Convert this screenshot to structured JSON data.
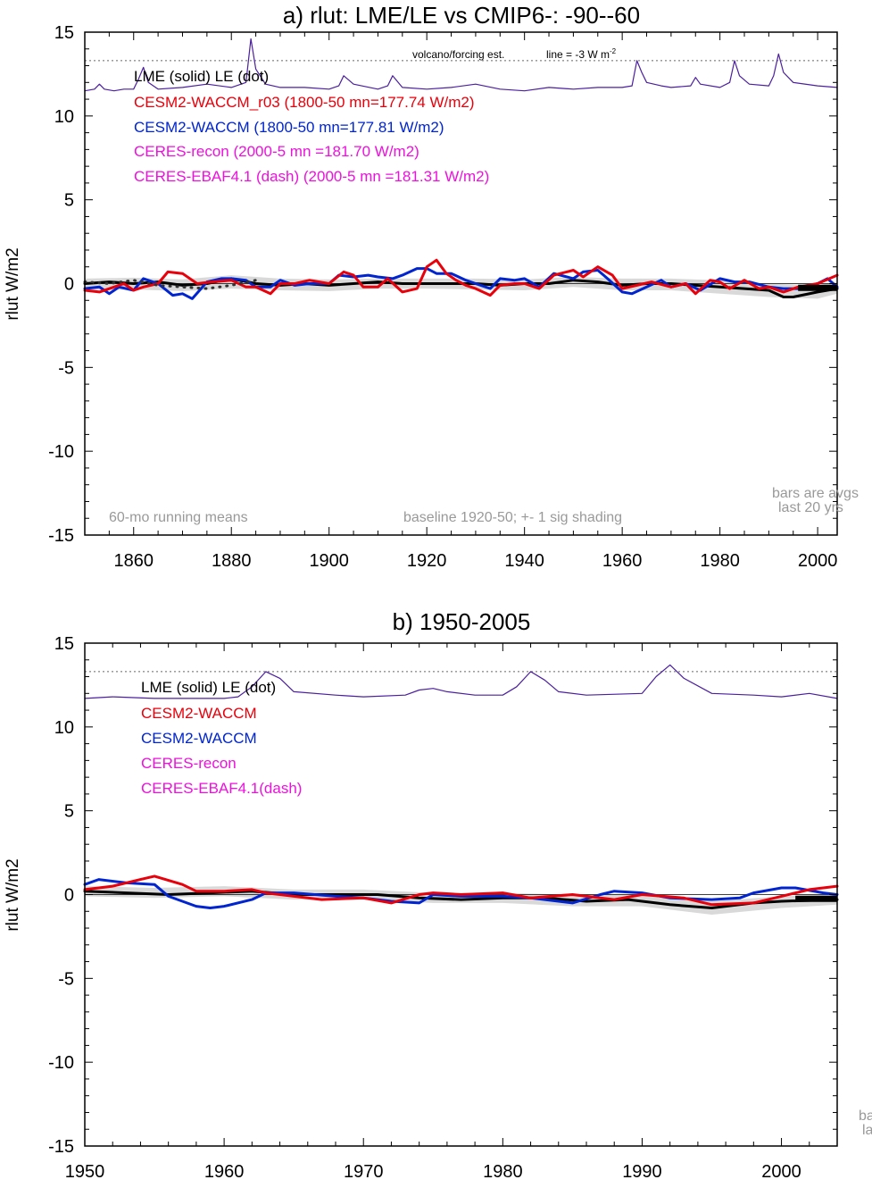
{
  "chart_data": [
    {
      "type": "line",
      "title": "a) rlut: LME/LE vs CMIP6-: -90--60",
      "ylabel": "rlut W/m2",
      "xlabel": "",
      "xlim": [
        1850,
        2004
      ],
      "ylim": [
        -15,
        15
      ],
      "xticks": [
        1860,
        1880,
        1900,
        1920,
        1940,
        1960,
        1980,
        2000
      ],
      "yticks": [
        15,
        10,
        5,
        0,
        -5,
        -10,
        -15
      ],
      "xtick_labels": [
        "1860",
        "1880",
        "1900",
        "1920",
        "1940",
        "1960",
        "1980",
        "2000"
      ],
      "ytick_labels": [
        "15",
        "10",
        "5",
        "0",
        "-5",
        "-10",
        "-15"
      ],
      "grid": false,
      "reference_line_y": 13.3,
      "volcano_note": "volcano/forcing est.",
      "line_note": "line = -3 W m",
      "line_note_sup": "-2",
      "legend": [
        {
          "text": "LME (solid)   LE (dot)",
          "color": "#000000"
        },
        {
          "text": "CESM2-WACCM_r03 (1800-50 mn=177.74 W/m2)",
          "color": "#e8000b"
        },
        {
          "text": "CESM2-WACCM (1800-50 mn=177.81 W/m2)",
          "color": "#0025d0"
        },
        {
          "text": "CERES-recon (2000-5 mn =181.70 W/m2)",
          "color": "#ee10dd"
        },
        {
          "text": "CERES-EBAF4.1 (dash) (2000-5 mn =181.31 W/m2)",
          "color": "#ee10dd"
        }
      ],
      "footnote_left": "60-mo running means",
      "footnote_mid": "baseline 1920-50; +- 1 sig shading",
      "footnote_right_1": "bars are avgs",
      "footnote_right_2": "last 20 yrs",
      "colors": {
        "lme": "#000000",
        "r03": "#e8000b",
        "waccm": "#0025d0",
        "forcing": "#4b1f9e",
        "shade": "#d9d9d9",
        "note": "#999999"
      },
      "series": [
        {
          "key": "forcing",
          "x": [
            1850,
            1852,
            1853,
            1854,
            1856,
            1858,
            1860,
            1861,
            1862,
            1863,
            1865,
            1870,
            1875,
            1880,
            1883,
            1884,
            1885,
            1887,
            1890,
            1895,
            1900,
            1902,
            1903,
            1905,
            1910,
            1912,
            1913,
            1915,
            1920,
            1925,
            1930,
            1935,
            1940,
            1945,
            1950,
            1955,
            1960,
            1962,
            1963,
            1964,
            1965,
            1968,
            1970,
            1974,
            1975,
            1976,
            1980,
            1982,
            1983,
            1984,
            1986,
            1990,
            1991,
            1992,
            1993,
            1995,
            2000,
            2004
          ],
          "values": [
            11.5,
            11.6,
            11.9,
            11.6,
            11.5,
            11.6,
            11.6,
            12.2,
            12.9,
            12.0,
            11.6,
            11.7,
            11.9,
            11.7,
            12.0,
            14.6,
            12.8,
            11.9,
            11.7,
            11.7,
            11.6,
            11.8,
            12.4,
            11.9,
            11.6,
            11.8,
            12.4,
            11.7,
            11.6,
            11.7,
            11.9,
            11.6,
            11.5,
            11.7,
            11.6,
            11.7,
            11.7,
            11.8,
            13.3,
            12.6,
            12.0,
            11.8,
            11.7,
            11.8,
            12.3,
            11.9,
            11.7,
            12.0,
            13.3,
            12.4,
            11.9,
            11.8,
            12.4,
            13.7,
            12.6,
            12.0,
            11.8,
            11.7
          ]
        },
        {
          "key": "lme",
          "x": [
            1850,
            1855,
            1860,
            1865,
            1870,
            1875,
            1880,
            1885,
            1890,
            1895,
            1900,
            1905,
            1910,
            1915,
            1920,
            1925,
            1930,
            1935,
            1940,
            1945,
            1950,
            1955,
            1960,
            1965,
            1970,
            1975,
            1980,
            1985,
            1990,
            1993,
            1995,
            2000,
            2004
          ],
          "values": [
            0.0,
            0.1,
            0.0,
            0.1,
            -0.1,
            0.0,
            0.3,
            0.0,
            -0.1,
            0.0,
            -0.1,
            0.0,
            0.1,
            0.0,
            0.0,
            0.0,
            0.0,
            -0.1,
            0.0,
            0.0,
            0.2,
            0.1,
            -0.1,
            0.0,
            0.0,
            -0.1,
            -0.2,
            -0.3,
            -0.4,
            -0.8,
            -0.8,
            -0.5,
            -0.3
          ]
        },
        {
          "key": "r03",
          "x": [
            1850,
            1853,
            1856,
            1858,
            1860,
            1862,
            1865,
            1867,
            1870,
            1873,
            1876,
            1880,
            1883,
            1885,
            1888,
            1890,
            1893,
            1896,
            1900,
            1903,
            1905,
            1907,
            1910,
            1912,
            1915,
            1918,
            1920,
            1922,
            1924,
            1926,
            1928,
            1930,
            1933,
            1935,
            1938,
            1940,
            1943,
            1946,
            1950,
            1952,
            1955,
            1958,
            1960,
            1963,
            1966,
            1970,
            1973,
            1975,
            1978,
            1980,
            1982,
            1985,
            1988,
            1990,
            1993,
            1996,
            2000,
            2004
          ],
          "values": [
            -0.4,
            -0.5,
            -0.2,
            0.0,
            -0.4,
            -0.2,
            0.0,
            0.7,
            0.6,
            0.0,
            0.1,
            0.2,
            -0.2,
            -0.2,
            -0.6,
            0.0,
            0.0,
            0.2,
            0.0,
            0.7,
            0.5,
            -0.2,
            -0.2,
            0.3,
            -0.5,
            -0.3,
            1.0,
            1.4,
            0.6,
            0.2,
            -0.1,
            -0.3,
            -0.7,
            -0.1,
            0.0,
            0.0,
            -0.3,
            0.5,
            0.8,
            0.4,
            1.0,
            0.5,
            -0.3,
            -0.1,
            0.1,
            -0.2,
            0.0,
            -0.6,
            0.2,
            0.1,
            -0.3,
            0.2,
            -0.3,
            -0.2,
            -0.5,
            -0.2,
            0.0,
            0.5
          ]
        },
        {
          "key": "waccm",
          "x": [
            1850,
            1853,
            1855,
            1857,
            1860,
            1862,
            1865,
            1868,
            1870,
            1872,
            1875,
            1878,
            1880,
            1883,
            1885,
            1888,
            1890,
            1893,
            1896,
            1900,
            1902,
            1905,
            1908,
            1910,
            1913,
            1915,
            1918,
            1920,
            1922,
            1925,
            1928,
            1930,
            1933,
            1935,
            1938,
            1940,
            1943,
            1946,
            1950,
            1952,
            1955,
            1957,
            1960,
            1962,
            1965,
            1968,
            1970,
            1973,
            1976,
            1980,
            1983,
            1986,
            1990,
            1993,
            1996,
            2000,
            2002,
            2004
          ],
          "values": [
            -0.3,
            -0.2,
            -0.6,
            -0.2,
            -0.4,
            0.3,
            0.0,
            -0.7,
            -0.6,
            -0.9,
            0.1,
            0.3,
            0.3,
            0.2,
            -0.2,
            -0.2,
            0.2,
            -0.1,
            0.0,
            0.0,
            0.5,
            0.4,
            0.5,
            0.4,
            0.3,
            0.5,
            0.9,
            0.9,
            0.6,
            0.6,
            0.2,
            0.0,
            -0.3,
            0.3,
            0.2,
            0.3,
            -0.2,
            0.6,
            0.3,
            0.7,
            0.8,
            0.3,
            -0.5,
            -0.6,
            -0.2,
            0.2,
            -0.2,
            0.0,
            -0.4,
            0.3,
            0.1,
            0.1,
            -0.2,
            -0.3,
            -0.3,
            0.0,
            0.3,
            -0.2
          ]
        },
        {
          "key": "le_dot",
          "x": [
            1850,
            1855,
            1860,
            1865,
            1870,
            1875,
            1880,
            1885
          ],
          "values": [
            0.1,
            0.0,
            0.2,
            -0.1,
            -0.2,
            -0.3,
            -0.1,
            0.2
          ]
        }
      ],
      "band": {
        "x": [
          1850,
          1860,
          1870,
          1880,
          1890,
          1900,
          1910,
          1920,
          1930,
          1940,
          1950,
          1960,
          1970,
          1980,
          1990,
          2000,
          2004
        ],
        "upper": [
          0.3,
          0.35,
          0.25,
          0.5,
          0.3,
          0.25,
          0.3,
          0.3,
          0.3,
          0.25,
          0.4,
          0.3,
          0.3,
          0.2,
          0.0,
          -0.1,
          0.1
        ],
        "lower": [
          -0.4,
          -0.35,
          -0.45,
          -0.3,
          -0.4,
          -0.45,
          -0.3,
          -0.3,
          -0.35,
          -0.4,
          -0.2,
          -0.4,
          -0.4,
          -0.6,
          -0.8,
          -0.9,
          -0.6
        ]
      },
      "bar": {
        "x0": 1996,
        "x1": 2004,
        "value": -0.25
      }
    },
    {
      "type": "line",
      "title": "b) 1950-2005",
      "ylabel": "rlut W/m2",
      "xlabel": "",
      "xlim": [
        1950,
        2004
      ],
      "ylim": [
        -15,
        15
      ],
      "xticks": [
        1950,
        1960,
        1970,
        1980,
        1990,
        2000
      ],
      "yticks": [
        15,
        10,
        5,
        0,
        -5,
        -10,
        -15
      ],
      "xtick_labels": [
        "1950",
        "1960",
        "1970",
        "1980",
        "1990",
        "2000"
      ],
      "ytick_labels": [
        "15",
        "10",
        "5",
        "0",
        "-5",
        "-10",
        "-15"
      ],
      "grid": false,
      "reference_line_y": 13.3,
      "legend": [
        {
          "text": "LME (solid)      LE (dot)",
          "color": "#000000"
        },
        {
          "text": "CESM2-WACCM",
          "color": "#e8000b"
        },
        {
          "text": "CESM2-WACCM",
          "color": "#0025d0"
        },
        {
          "text": "CERES-recon",
          "color": "#ee10dd"
        },
        {
          "text": "CERES-EBAF4.1(dash)",
          "color": "#ee10dd"
        }
      ],
      "footnote_right_1": "ba",
      "footnote_right_2": "la",
      "colors": {
        "lme": "#000000",
        "r03": "#e8000b",
        "waccm": "#0025d0",
        "forcing": "#4b1f9e",
        "shade": "#d9d9d9",
        "note": "#999999"
      },
      "series": [
        {
          "key": "forcing",
          "x": [
            1950,
            1952,
            1955,
            1958,
            1960,
            1961,
            1962,
            1963,
            1964,
            1965,
            1968,
            1970,
            1973,
            1974,
            1975,
            1976,
            1978,
            1980,
            1981,
            1982,
            1983,
            1984,
            1986,
            1990,
            1991,
            1992,
            1993,
            1995,
            1998,
            2000,
            2002,
            2004
          ],
          "values": [
            11.7,
            11.8,
            11.7,
            11.7,
            11.7,
            11.8,
            12.4,
            13.3,
            12.9,
            12.1,
            11.9,
            11.8,
            11.9,
            12.2,
            12.3,
            12.1,
            11.9,
            11.9,
            12.4,
            13.3,
            12.8,
            12.1,
            11.9,
            12.0,
            13.0,
            13.7,
            12.9,
            12.0,
            11.9,
            11.8,
            12.0,
            11.7
          ]
        },
        {
          "key": "lme",
          "x": [
            1950,
            1953,
            1956,
            1959,
            1962,
            1965,
            1968,
            1971,
            1974,
            1977,
            1980,
            1983,
            1986,
            1989,
            1992,
            1995,
            1998,
            2000,
            2004
          ],
          "values": [
            0.2,
            0.1,
            0.0,
            0.1,
            0.2,
            0.0,
            0.0,
            0.0,
            -0.2,
            -0.3,
            -0.2,
            -0.2,
            -0.4,
            -0.3,
            -0.6,
            -0.8,
            -0.5,
            -0.4,
            -0.3
          ]
        },
        {
          "key": "r03",
          "x": [
            1950,
            1952,
            1954,
            1955,
            1957,
            1958,
            1960,
            1962,
            1963,
            1965,
            1967,
            1970,
            1972,
            1974,
            1975,
            1977,
            1980,
            1982,
            1985,
            1988,
            1990,
            1993,
            1995,
            1998,
            2000,
            2002,
            2004
          ],
          "values": [
            0.3,
            0.5,
            0.9,
            1.1,
            0.6,
            0.2,
            0.2,
            0.3,
            0.1,
            -0.1,
            -0.3,
            -0.2,
            -0.5,
            0.0,
            0.1,
            0.0,
            0.1,
            -0.2,
            0.0,
            -0.3,
            0.0,
            -0.2,
            -0.6,
            -0.5,
            -0.1,
            0.3,
            0.5
          ]
        },
        {
          "key": "waccm",
          "x": [
            1950,
            1951,
            1953,
            1955,
            1956,
            1958,
            1959,
            1960,
            1962,
            1963,
            1965,
            1968,
            1970,
            1972,
            1974,
            1975,
            1977,
            1980,
            1982,
            1985,
            1987,
            1988,
            1990,
            1992,
            1995,
            1997,
            1998,
            2000,
            2001,
            2003,
            2004
          ],
          "values": [
            0.6,
            0.9,
            0.7,
            0.6,
            -0.1,
            -0.7,
            -0.8,
            -0.7,
            -0.3,
            0.1,
            0.1,
            -0.1,
            -0.2,
            -0.4,
            -0.5,
            0.0,
            -0.1,
            -0.1,
            -0.2,
            -0.5,
            0.0,
            0.2,
            0.1,
            -0.2,
            -0.3,
            -0.2,
            0.1,
            0.4,
            0.4,
            0.1,
            0.0
          ]
        }
      ],
      "band": {
        "x": [
          1950,
          1955,
          1960,
          1965,
          1970,
          1975,
          1980,
          1985,
          1990,
          1995,
          2000,
          2004
        ],
        "upper": [
          0.5,
          0.4,
          0.5,
          0.3,
          0.3,
          0.1,
          0.1,
          0.0,
          0.0,
          -0.4,
          -0.1,
          0.0
        ],
        "lower": [
          -0.1,
          -0.2,
          -0.1,
          -0.3,
          -0.3,
          -0.5,
          -0.5,
          -0.7,
          -0.7,
          -1.2,
          -0.8,
          -0.6
        ]
      },
      "bar": {
        "x0": 2001,
        "x1": 2004,
        "value": -0.25
      }
    }
  ]
}
